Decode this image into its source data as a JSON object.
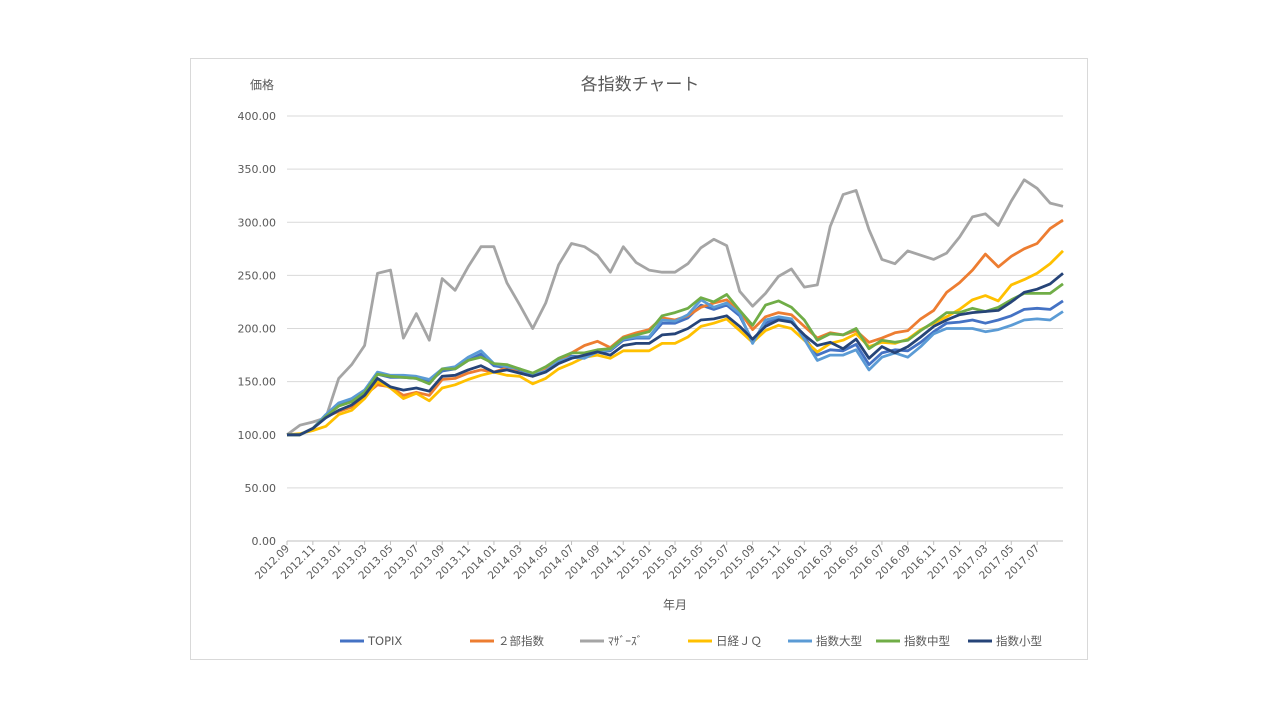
{
  "chart_data": {
    "type": "line",
    "title": "各指数チャート",
    "xlabel": "年月",
    "ylabel": "価格",
    "ylim": [
      0,
      400
    ],
    "yticks": [
      "0.00",
      "50.00",
      "100.00",
      "150.00",
      "200.00",
      "250.00",
      "300.00",
      "350.00",
      "400.00"
    ],
    "ytick_values": [
      0,
      50,
      100,
      150,
      200,
      250,
      300,
      350,
      400
    ],
    "grid": true,
    "legend_position": "bottom",
    "x": [
      "2012.09",
      "2012.10",
      "2012.11",
      "2012.12",
      "2013.01",
      "2013.02",
      "2013.03",
      "2013.04",
      "2013.05",
      "2013.06",
      "2013.07",
      "2013.08",
      "2013.09",
      "2013.10",
      "2013.11",
      "2013.12",
      "2014.01",
      "2014.02",
      "2014.03",
      "2014.04",
      "2014.05",
      "2014.06",
      "2014.07",
      "2014.08",
      "2014.09",
      "2014.10",
      "2014.11",
      "2014.12",
      "2015.01",
      "2015.02",
      "2015.03",
      "2015.04",
      "2015.05",
      "2015.06",
      "2015.07",
      "2015.08",
      "2015.09",
      "2015.10",
      "2015.11",
      "2015.12",
      "2016.01",
      "2016.02",
      "2016.03",
      "2016.04",
      "2016.05",
      "2016.06",
      "2016.07",
      "2016.08",
      "2016.09",
      "2016.10",
      "2016.11",
      "2016.12",
      "2017.01",
      "2017.02",
      "2017.03",
      "2017.04",
      "2017.05",
      "2017.06",
      "2017.07",
      "2017.08",
      "2017.09"
    ],
    "xtick_labels": [
      "2012.09",
      "2012.11",
      "2013.01",
      "2013.03",
      "2013.05",
      "2013.07",
      "2013.09",
      "2013.11",
      "2014.01",
      "2014.03",
      "2014.05",
      "2014.07",
      "2014.09",
      "2014.11",
      "2015.01",
      "2015.03",
      "2015.05",
      "2015.07",
      "2015.09",
      "2015.11",
      "2016.01",
      "2016.03",
      "2016.05",
      "2016.07",
      "2016.09",
      "2016.11",
      "2017.01",
      "2017.03",
      "2017.05",
      "2017.07"
    ],
    "series": [
      {
        "name": "TOPIX",
        "color": "#4472C4",
        "values": [
          100,
          100,
          106,
          118,
          128,
          132,
          140,
          157,
          154,
          154,
          153,
          150,
          160,
          162,
          170,
          176,
          165,
          163,
          161,
          156,
          160,
          169,
          174,
          173,
          178,
          179,
          189,
          191,
          191,
          205,
          205,
          210,
          222,
          218,
          222,
          212,
          188,
          205,
          210,
          207,
          192,
          175,
          180,
          179,
          185,
          166,
          177,
          180,
          179,
          187,
          197,
          205,
          206,
          208,
          205,
          208,
          212,
          218,
          219,
          218,
          226
        ]
      },
      {
        "name": "２部指数",
        "color": "#ED7D31",
        "values": [
          100,
          100,
          106,
          117,
          122,
          126,
          137,
          147,
          145,
          137,
          140,
          137,
          152,
          153,
          158,
          161,
          159,
          163,
          158,
          155,
          161,
          170,
          177,
          184,
          188,
          182,
          192,
          196,
          199,
          210,
          208,
          212,
          220,
          224,
          227,
          216,
          199,
          211,
          215,
          213,
          202,
          191,
          196,
          194,
          198,
          187,
          191,
          196,
          198,
          209,
          217,
          234,
          243,
          255,
          270,
          258,
          268,
          275,
          280,
          294,
          302
        ]
      },
      {
        "name": "ﾏｻﾞｰｽﾞ",
        "color": "#A5A5A5",
        "values": [
          100,
          109,
          112,
          116,
          153,
          166,
          184,
          252,
          255,
          191,
          214,
          189,
          247,
          236,
          258,
          277,
          277,
          243,
          222,
          200,
          224,
          260,
          280,
          277,
          269,
          253,
          277,
          262,
          255,
          253,
          253,
          261,
          276,
          284,
          278,
          235,
          221,
          233,
          249,
          256,
          239,
          241,
          296,
          326,
          330,
          293,
          265,
          261,
          273,
          269,
          265,
          271,
          286,
          305,
          308,
          297,
          320,
          340,
          332,
          318,
          315
        ]
      },
      {
        "name": "日経ＪＱ",
        "color": "#FFC000",
        "values": [
          100,
          101,
          104,
          108,
          119,
          123,
          134,
          150,
          144,
          134,
          139,
          132,
          144,
          147,
          152,
          156,
          159,
          156,
          155,
          148,
          153,
          162,
          167,
          173,
          175,
          172,
          179,
          179,
          179,
          186,
          186,
          192,
          202,
          205,
          209,
          198,
          187,
          198,
          203,
          200,
          189,
          178,
          186,
          189,
          195,
          183,
          187,
          186,
          190,
          199,
          205,
          211,
          218,
          227,
          231,
          226,
          241,
          246,
          252,
          261,
          273
        ]
      },
      {
        "name": "指数大型",
        "color": "#5B9BD5",
        "values": [
          100,
          100,
          106,
          119,
          130,
          134,
          142,
          159,
          156,
          156,
          155,
          152,
          162,
          164,
          173,
          179,
          167,
          164,
          162,
          156,
          160,
          169,
          173,
          172,
          178,
          180,
          190,
          192,
          192,
          208,
          207,
          213,
          227,
          220,
          224,
          214,
          186,
          208,
          211,
          209,
          190,
          170,
          175,
          175,
          180,
          161,
          173,
          177,
          173,
          183,
          195,
          200,
          200,
          200,
          197,
          199,
          203,
          208,
          209,
          208,
          216
        ]
      },
      {
        "name": "指数中型",
        "color": "#70AD47",
        "values": [
          100,
          100,
          106,
          117,
          127,
          131,
          140,
          157,
          155,
          154,
          153,
          148,
          162,
          162,
          170,
          173,
          167,
          166,
          162,
          158,
          164,
          172,
          177,
          177,
          180,
          181,
          191,
          194,
          197,
          212,
          215,
          219,
          229,
          225,
          232,
          217,
          203,
          222,
          226,
          220,
          208,
          189,
          195,
          194,
          200,
          181,
          189,
          187,
          189,
          198,
          206,
          215,
          215,
          219,
          216,
          220,
          227,
          233,
          233,
          233,
          242
        ]
      },
      {
        "name": "指数小型",
        "color": "#264478",
        "values": [
          100,
          100,
          106,
          116,
          123,
          128,
          137,
          153,
          145,
          142,
          144,
          141,
          155,
          156,
          161,
          165,
          159,
          161,
          158,
          155,
          159,
          167,
          172,
          175,
          178,
          175,
          184,
          186,
          186,
          194,
          195,
          200,
          208,
          209,
          212,
          202,
          190,
          202,
          208,
          206,
          194,
          184,
          187,
          181,
          190,
          172,
          183,
          177,
          183,
          192,
          202,
          208,
          213,
          215,
          216,
          217,
          225,
          234,
          237,
          242,
          252
        ]
      }
    ]
  }
}
